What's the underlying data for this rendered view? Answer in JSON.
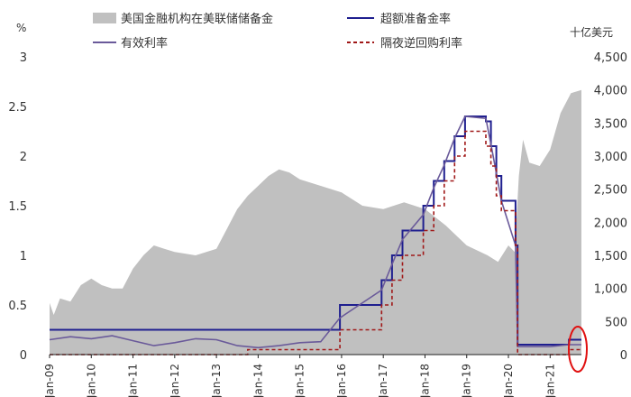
{
  "chart_data": {
    "type": "line",
    "left_unit": "%",
    "right_unit": "十亿美元",
    "left_ylim": [
      0,
      3
    ],
    "left_ticks": [
      "0",
      "0.5",
      "1",
      "1.5",
      "2",
      "2.5",
      "3"
    ],
    "right_ylim": [
      0,
      4500
    ],
    "right_ticks": [
      "0",
      "500",
      "1,000",
      "1,500",
      "2,000",
      "2,500",
      "3,000",
      "3,500",
      "4,000",
      "4,500"
    ],
    "x_ticks": [
      "Jan-09",
      "Jan-10",
      "Jan-11",
      "Jan-12",
      "Jan-13",
      "Jan-14",
      "Jan-15",
      "Jan-16",
      "Jan-17",
      "Jan-18",
      "Jan-19",
      "Jan-20",
      "Jan-21"
    ],
    "xlim": [
      2009.0,
      2021.75
    ],
    "legend": {
      "reserves": "美国金融机构在美联储储备金",
      "ioer": "超额准备金率",
      "effr": "有效利率",
      "onrrp": "隔夜逆回购利率"
    },
    "colors": {
      "reserves": "#c0c0c0",
      "ioer": "#1f1f8f",
      "effr": "#6a5a9a",
      "onrrp": "#a01818",
      "highlight": "#e01010"
    },
    "series": [
      {
        "name": "美国金融机构在美联储储备金",
        "axis": "right",
        "kind": "area",
        "x": [
          2009.0,
          2009.1,
          2009.25,
          2009.5,
          2009.75,
          2010.0,
          2010.25,
          2010.5,
          2010.75,
          2011.0,
          2011.25,
          2011.5,
          2011.75,
          2012.0,
          2012.5,
          2013.0,
          2013.25,
          2013.5,
          2013.75,
          2014.0,
          2014.25,
          2014.5,
          2014.75,
          2015.0,
          2015.5,
          2016.0,
          2016.5,
          2017.0,
          2017.5,
          2018.0,
          2018.5,
          2019.0,
          2019.5,
          2019.75,
          2020.0,
          2020.15,
          2020.25,
          2020.35,
          2020.5,
          2020.75,
          2021.0,
          2021.25,
          2021.5,
          2021.75
        ],
        "values": [
          780,
          600,
          850,
          800,
          1050,
          1150,
          1050,
          1000,
          1000,
          1300,
          1500,
          1650,
          1600,
          1550,
          1500,
          1600,
          1900,
          2200,
          2400,
          2550,
          2700,
          2800,
          2750,
          2650,
          2550,
          2450,
          2250,
          2200,
          2300,
          2200,
          1950,
          1650,
          1500,
          1400,
          1650,
          1550,
          2700,
          3250,
          2900,
          2850,
          3100,
          3650,
          3950,
          4000
        ]
      },
      {
        "name": "超额准备金率",
        "axis": "left",
        "kind": "step",
        "x": [
          2009.0,
          2015.96,
          2016.96,
          2017.21,
          2017.46,
          2017.96,
          2018.21,
          2018.46,
          2018.71,
          2018.96,
          2019.46,
          2019.58,
          2019.71,
          2019.83,
          2020.17,
          2020.22,
          2021.45,
          2021.75
        ],
        "values": [
          0.25,
          0.5,
          0.75,
          1.0,
          1.25,
          1.5,
          1.75,
          1.95,
          2.2,
          2.4,
          2.35,
          2.1,
          1.8,
          1.55,
          1.1,
          0.1,
          0.15,
          0.15
        ]
      },
      {
        "name": "有效利率",
        "axis": "left",
        "kind": "line",
        "x": [
          2009.0,
          2009.5,
          2010.0,
          2010.5,
          2011.0,
          2011.5,
          2012.0,
          2012.5,
          2013.0,
          2013.5,
          2014.0,
          2014.5,
          2015.0,
          2015.5,
          2015.96,
          2016.96,
          2017.21,
          2017.46,
          2017.96,
          2018.21,
          2018.46,
          2018.71,
          2018.96,
          2019.46,
          2019.58,
          2019.71,
          2019.83,
          2020.17,
          2020.22,
          2021.0,
          2021.45,
          2021.75
        ],
        "values": [
          0.15,
          0.18,
          0.16,
          0.19,
          0.14,
          0.09,
          0.12,
          0.16,
          0.15,
          0.09,
          0.07,
          0.09,
          0.12,
          0.13,
          0.37,
          0.65,
          0.91,
          1.16,
          1.41,
          1.68,
          1.91,
          2.18,
          2.4,
          2.38,
          2.12,
          1.83,
          1.55,
          1.1,
          0.08,
          0.08,
          0.1,
          0.1
        ]
      },
      {
        "name": "隔夜逆回购利率",
        "axis": "left",
        "kind": "step",
        "dashed": true,
        "x": [
          2009.0,
          2013.75,
          2015.96,
          2016.96,
          2017.21,
          2017.46,
          2017.96,
          2018.21,
          2018.46,
          2018.71,
          2018.96,
          2019.46,
          2019.58,
          2019.71,
          2019.83,
          2020.17,
          2020.22,
          2021.45,
          2021.75
        ],
        "values": [
          0.0,
          0.05,
          0.25,
          0.5,
          0.75,
          1.0,
          1.25,
          1.5,
          1.75,
          2.0,
          2.25,
          2.1,
          1.9,
          1.6,
          1.45,
          1.1,
          0.0,
          0.05,
          0.05
        ]
      }
    ]
  }
}
